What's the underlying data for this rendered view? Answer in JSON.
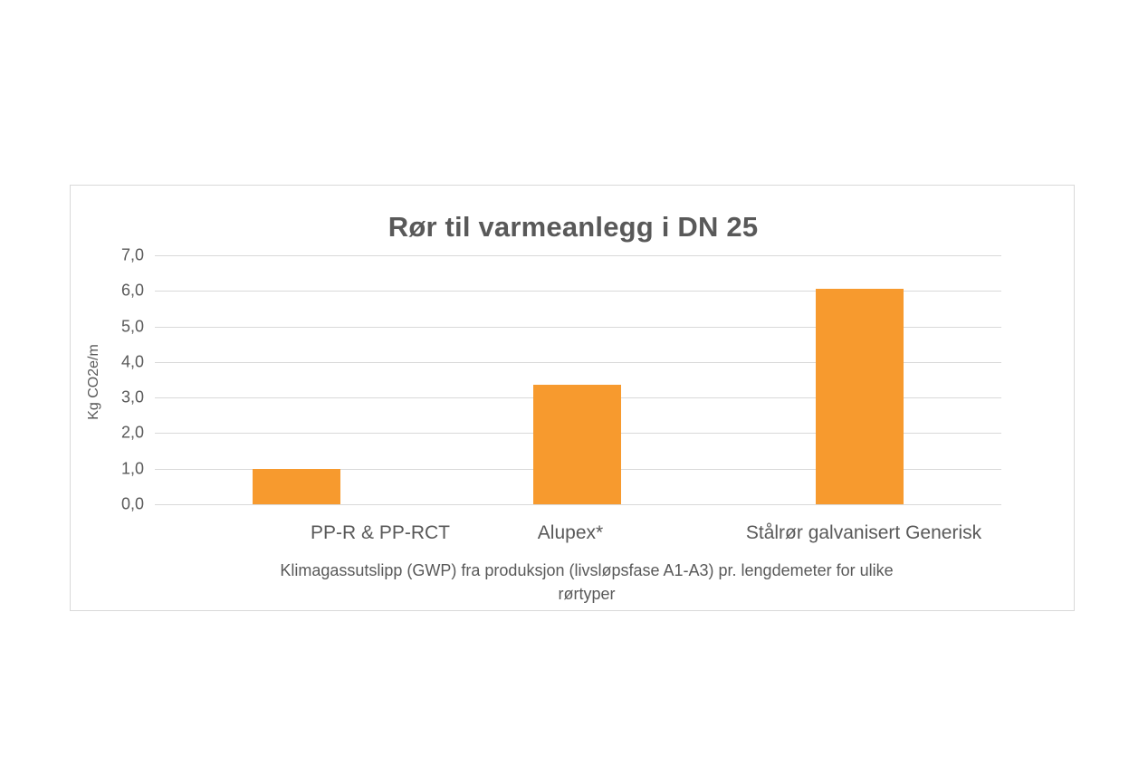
{
  "chart_data": {
    "type": "bar",
    "title": "Rør til varmeanlegg i DN 25",
    "xlabel": "Klimagassutslipp (GWP) fra produksjon (livsløpsfase A1-A3) pr. lengdemeter for ulike rørtyper",
    "ylabel": "Kg CO2e/m",
    "categories": [
      "PP-R & PP-RCT",
      "Alupex*",
      "Stålrør galvanisert Generisk"
    ],
    "values": [
      1.0,
      3.35,
      6.05
    ],
    "ylim": [
      0,
      7
    ],
    "yticks": [
      "0,0",
      "1,0",
      "2,0",
      "3,0",
      "4,0",
      "5,0",
      "6,0",
      "7,0"
    ],
    "grid": true,
    "legend": "none",
    "bar_color": "#f79a2e"
  },
  "labels": {
    "title": "Rør til varmeanlegg i DN 25",
    "ylabel": "Kg CO2e/m",
    "xlabel_line1": "Klimagassutslipp (GWP) fra produksjon (livsløpsfase A1-A3) pr. lengdemeter for ulike",
    "xlabel_line2": "rørtyper",
    "categories": [
      "PP-R & PP-RCT",
      "Alupex*",
      "Stålrør galvanisert Generisk"
    ],
    "yticks": [
      "0,0",
      "1,0",
      "2,0",
      "3,0",
      "4,0",
      "5,0",
      "6,0",
      "7,0"
    ]
  }
}
